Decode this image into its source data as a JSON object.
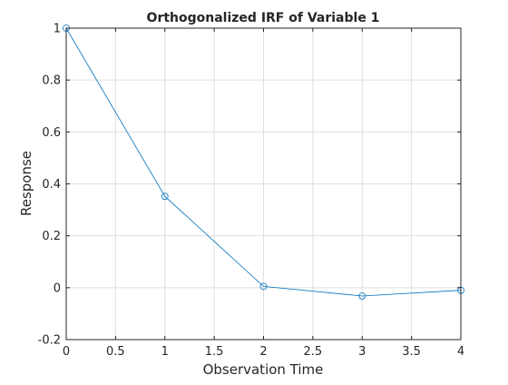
{
  "chart_data": {
    "type": "line",
    "title": "Orthogonalized IRF of Variable 1",
    "xlabel": "Observation Time",
    "ylabel": "Response",
    "xlim": [
      0,
      4
    ],
    "ylim": [
      -0.2,
      1
    ],
    "grid": true,
    "x_ticks": [
      0,
      0.5,
      1,
      1.5,
      2,
      2.5,
      3,
      3.5,
      4
    ],
    "x_tick_labels": [
      "0",
      "0.5",
      "1",
      "1.5",
      "2",
      "2.5",
      "3",
      "3.5",
      "4"
    ],
    "y_ticks": [
      -0.2,
      0,
      0.2,
      0.4,
      0.6,
      0.8,
      1
    ],
    "y_tick_labels": [
      "-0.2",
      "0",
      "0.2",
      "0.4",
      "0.6",
      "0.8",
      "1"
    ],
    "series": [
      {
        "x": [
          0,
          1,
          2,
          3,
          4
        ],
        "y": [
          1.0,
          0.352,
          0.005,
          -0.032,
          -0.01
        ],
        "color": "#0072BD",
        "marker": "circle"
      }
    ]
  }
}
